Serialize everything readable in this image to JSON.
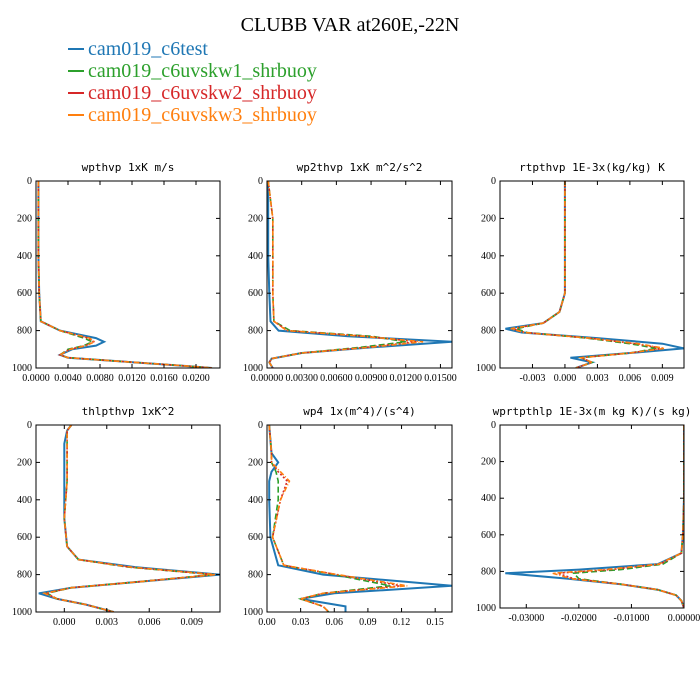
{
  "title": "CLUBB VAR at260E,-22N",
  "legend": [
    {
      "name": "cam019_c6test",
      "color": "#1f77b4"
    },
    {
      "name": "cam019_c6uvskw1_shrbuoy",
      "color": "#2ca02c"
    },
    {
      "name": "cam019_c6uvskw2_shrbuoy",
      "color": "#d62728"
    },
    {
      "name": "cam019_c6uvskw3_shrbuoy",
      "color": "#ff7f0e"
    }
  ],
  "chart_data": [
    {
      "type": "line",
      "title": "wpthvp   1xK m/s",
      "xlim": [
        0,
        0.023
      ],
      "ylim": [
        1000,
        0
      ],
      "xticks": [
        0,
        0.004,
        0.008,
        0.012,
        0.016,
        0.02
      ],
      "xtick_labels": [
        "0.0000",
        "0.0040",
        "0.0080",
        "0.0120",
        "0.0160",
        "0.0200"
      ],
      "yticks": [
        0,
        200,
        400,
        600,
        800,
        1000
      ],
      "y": [
        0,
        200,
        400,
        600,
        750,
        800,
        840,
        860,
        880,
        900,
        930,
        945,
        960,
        990,
        1000
      ],
      "series": [
        {
          "name": "cam019_c6test",
          "x": [
            0.0003,
            0.0003,
            0.0003,
            0.0004,
            0.0006,
            0.003,
            0.0075,
            0.0085,
            0.0075,
            0.0045,
            0.003,
            0.004,
            0.009,
            0.019,
            0.022
          ]
        },
        {
          "name": "cam019_c6uvskw1_shrbuoy",
          "x": [
            0.0003,
            0.0003,
            0.0003,
            0.0004,
            0.0006,
            0.003,
            0.006,
            0.007,
            0.006,
            0.004,
            0.003,
            0.004,
            0.009,
            0.019,
            0.022
          ]
        },
        {
          "name": "cam019_c6uvskw2_shrbuoy",
          "x": [
            0.0003,
            0.0003,
            0.0003,
            0.0004,
            0.0006,
            0.003,
            0.0065,
            0.0072,
            0.0062,
            0.0042,
            0.003,
            0.004,
            0.009,
            0.019,
            0.022
          ]
        },
        {
          "name": "cam019_c6uvskw3_shrbuoy",
          "x": [
            0.0003,
            0.0003,
            0.0003,
            0.0004,
            0.0006,
            0.003,
            0.0067,
            0.0073,
            0.0063,
            0.0043,
            0.003,
            0.004,
            0.009,
            0.019,
            0.022
          ]
        }
      ]
    },
    {
      "type": "line",
      "title": "wp2thvp   1xK m^2/s^2",
      "xlim": [
        0,
        0.016
      ],
      "ylim": [
        1000,
        0
      ],
      "xticks": [
        0,
        0.003,
        0.006,
        0.009,
        0.012,
        0.015
      ],
      "xtick_labels": [
        "0.00000",
        "0.00300",
        "0.00600",
        "0.00900",
        "0.01200",
        "0.01500"
      ],
      "yticks": [
        0,
        200,
        400,
        600,
        800,
        1000
      ],
      "y": [
        0,
        200,
        400,
        600,
        750,
        800,
        830,
        860,
        890,
        920,
        950,
        970,
        990,
        1000
      ],
      "series": [
        {
          "name": "cam019_c6test",
          "x": [
            0.0001,
            0.0001,
            0.0001,
            0.0002,
            0.0003,
            0.001,
            0.007,
            0.016,
            0.009,
            0.003,
            0.0004,
            0.0002,
            0.0004,
            0.0005
          ]
        },
        {
          "name": "cam019_c6uvskw1_shrbuoy",
          "x": [
            0.0001,
            0.0005,
            0.0005,
            0.0005,
            0.0006,
            0.002,
            0.009,
            0.012,
            0.008,
            0.003,
            0.0004,
            0.0002,
            0.0004,
            0.0005
          ]
        },
        {
          "name": "cam019_c6uvskw2_shrbuoy",
          "x": [
            0.0001,
            0.0005,
            0.0005,
            0.0005,
            0.0006,
            0.0018,
            0.0085,
            0.013,
            0.0085,
            0.003,
            0.0004,
            0.0002,
            0.0004,
            0.0005
          ]
        },
        {
          "name": "cam019_c6uvskw3_shrbuoy",
          "x": [
            0.0001,
            0.0005,
            0.0005,
            0.0005,
            0.0006,
            0.0017,
            0.0082,
            0.0135,
            0.0088,
            0.003,
            0.0004,
            0.0002,
            0.0004,
            0.0005
          ]
        }
      ]
    },
    {
      "type": "line",
      "title": "rtpthvp   1E-3x(kg/kg) K",
      "xlim": [
        -0.006,
        0.011
      ],
      "ylim": [
        1000,
        0
      ],
      "xticks": [
        -0.003,
        0,
        0.003,
        0.006,
        0.009
      ],
      "xtick_labels": [
        "-0.003",
        "0.000",
        "0.003",
        "0.006",
        "0.009"
      ],
      "yticks": [
        0,
        200,
        400,
        600,
        800,
        1000
      ],
      "y": [
        0,
        200,
        400,
        600,
        700,
        760,
        790,
        810,
        840,
        870,
        895,
        920,
        945,
        970,
        1000
      ],
      "series": [
        {
          "name": "cam019_c6test",
          "x": [
            0,
            0,
            0,
            0,
            -0.0005,
            -0.002,
            -0.0055,
            -0.004,
            0.003,
            0.009,
            0.011,
            0.006,
            0.0005,
            0.0025,
            0.001
          ]
        },
        {
          "name": "cam019_c6uvskw1_shrbuoy",
          "x": [
            0,
            0,
            0,
            0,
            -0.0005,
            -0.002,
            -0.0045,
            -0.0035,
            0.002,
            0.006,
            0.0085,
            0.006,
            0.0015,
            0.0025,
            0.001
          ]
        },
        {
          "name": "cam019_c6uvskw2_shrbuoy",
          "x": [
            0,
            0,
            0,
            0,
            -0.0005,
            -0.002,
            -0.0048,
            -0.0037,
            0.0022,
            0.0065,
            0.009,
            0.006,
            0.0015,
            0.0025,
            0.001
          ]
        },
        {
          "name": "cam019_c6uvskw3_shrbuoy",
          "x": [
            0,
            0,
            0,
            0,
            -0.0005,
            -0.002,
            -0.005,
            -0.0038,
            0.0023,
            0.0068,
            0.0092,
            0.006,
            0.0015,
            0.0025,
            0.001
          ]
        }
      ]
    },
    {
      "type": "line",
      "title": "thlpthvp   1xK^2",
      "xlim": [
        -0.002,
        0.011
      ],
      "ylim": [
        1000,
        0
      ],
      "xticks": [
        0,
        0.003,
        0.006,
        0.009
      ],
      "xtick_labels": [
        "0.000",
        "0.003",
        "0.006",
        "0.009"
      ],
      "yticks": [
        0,
        200,
        400,
        600,
        800,
        1000
      ],
      "y": [
        0,
        30,
        100,
        300,
        500,
        650,
        720,
        760,
        800,
        840,
        870,
        900,
        930,
        960,
        1000
      ],
      "series": [
        {
          "name": "cam019_c6test",
          "x": [
            0.0005,
            0.0002,
            0,
            0,
            0,
            0.0002,
            0.001,
            0.005,
            0.011,
            0.005,
            0.0005,
            -0.0018,
            -0.0005,
            0.0015,
            0.0035
          ]
        },
        {
          "name": "cam019_c6uvskw1_shrbuoy",
          "x": [
            0.0005,
            0.0002,
            0.0002,
            0.0002,
            0,
            0.0002,
            0.001,
            0.0045,
            0.0105,
            0.005,
            0.0005,
            -0.0012,
            -0.0005,
            0.0015,
            0.0035
          ]
        },
        {
          "name": "cam019_c6uvskw2_shrbuoy",
          "x": [
            0.0005,
            0.0002,
            0.0002,
            0.0002,
            0,
            0.0002,
            0.001,
            0.0046,
            0.0106,
            0.005,
            0.0005,
            -0.0013,
            -0.0005,
            0.0015,
            0.0035
          ]
        },
        {
          "name": "cam019_c6uvskw3_shrbuoy",
          "x": [
            0.0005,
            0.0002,
            0.0002,
            0.0002,
            0,
            0.0002,
            0.001,
            0.0047,
            0.0107,
            0.005,
            0.0005,
            -0.0014,
            -0.0005,
            0.0015,
            0.0035
          ]
        }
      ]
    },
    {
      "type": "line",
      "title": "wp4   1x(m^4)/(s^4)",
      "xlim": [
        0,
        0.165
      ],
      "ylim": [
        1000,
        0
      ],
      "xticks": [
        0,
        0.03,
        0.06,
        0.09,
        0.12,
        0.15
      ],
      "xtick_labels": [
        "0.00",
        "0.03",
        "0.06",
        "0.09",
        "0.12",
        "0.15"
      ],
      "yticks": [
        0,
        200,
        400,
        600,
        800,
        1000
      ],
      "y": [
        0,
        150,
        200,
        250,
        300,
        400,
        600,
        750,
        800,
        860,
        900,
        930,
        950,
        970,
        1000
      ],
      "series": [
        {
          "name": "cam019_c6test",
          "x": [
            0.002,
            0.004,
            0.01,
            0.004,
            0.002,
            0.002,
            0.003,
            0.01,
            0.05,
            0.165,
            0.06,
            0.03,
            0.05,
            0.07,
            0.07
          ]
        },
        {
          "name": "cam019_c6uvskw1_shrbuoy",
          "x": [
            0.002,
            0.004,
            0.004,
            0.008,
            0.01,
            0.01,
            0.005,
            0.015,
            0.06,
            0.11,
            0.05,
            0.03,
            0.04,
            0.05,
            0.055
          ]
        },
        {
          "name": "cam019_c6uvskw2_shrbuoy",
          "x": [
            0.002,
            0.004,
            0.004,
            0.01,
            0.018,
            0.012,
            0.005,
            0.015,
            0.062,
            0.12,
            0.05,
            0.03,
            0.04,
            0.05,
            0.055
          ]
        },
        {
          "name": "cam019_c6uvskw3_shrbuoy",
          "x": [
            0.002,
            0.004,
            0.004,
            0.012,
            0.02,
            0.012,
            0.005,
            0.015,
            0.063,
            0.125,
            0.05,
            0.03,
            0.04,
            0.05,
            0.055
          ]
        }
      ]
    },
    {
      "type": "line",
      "title": "wprtpthlp   1E-3x(m kg K)/(s kg)",
      "xlim": [
        -0.035,
        0
      ],
      "ylim": [
        1000,
        0
      ],
      "xticks": [
        -0.03,
        -0.02,
        -0.01,
        0
      ],
      "xtick_labels": [
        "-0.03000",
        "-0.02000",
        "-0.01000",
        "0.00000"
      ],
      "yticks": [
        0,
        200,
        400,
        600,
        800,
        1000
      ],
      "y": [
        0,
        200,
        400,
        600,
        700,
        760,
        790,
        810,
        840,
        870,
        900,
        930,
        960,
        1000
      ],
      "series": [
        {
          "name": "cam019_c6test",
          "x": [
            0,
            0,
            0,
            -0.0002,
            -0.0005,
            -0.005,
            -0.02,
            -0.034,
            -0.022,
            -0.012,
            -0.005,
            -0.0015,
            -0.0005,
            0
          ]
        },
        {
          "name": "cam019_c6uvskw1_shrbuoy",
          "x": [
            0,
            0,
            0,
            -0.0002,
            -0.0005,
            -0.004,
            -0.012,
            -0.021,
            -0.02,
            -0.012,
            -0.005,
            -0.0015,
            -0.0005,
            0
          ]
        },
        {
          "name": "cam019_c6uvskw2_shrbuoy",
          "x": [
            0,
            0,
            0,
            -0.0002,
            -0.0005,
            -0.0045,
            -0.014,
            -0.024,
            -0.021,
            -0.012,
            -0.005,
            -0.0015,
            -0.0005,
            0
          ]
        },
        {
          "name": "cam019_c6uvskw3_shrbuoy",
          "x": [
            0,
            0,
            0,
            -0.0002,
            -0.0005,
            -0.0048,
            -0.015,
            -0.025,
            -0.0215,
            -0.012,
            -0.005,
            -0.0015,
            -0.0005,
            0
          ]
        }
      ]
    }
  ]
}
